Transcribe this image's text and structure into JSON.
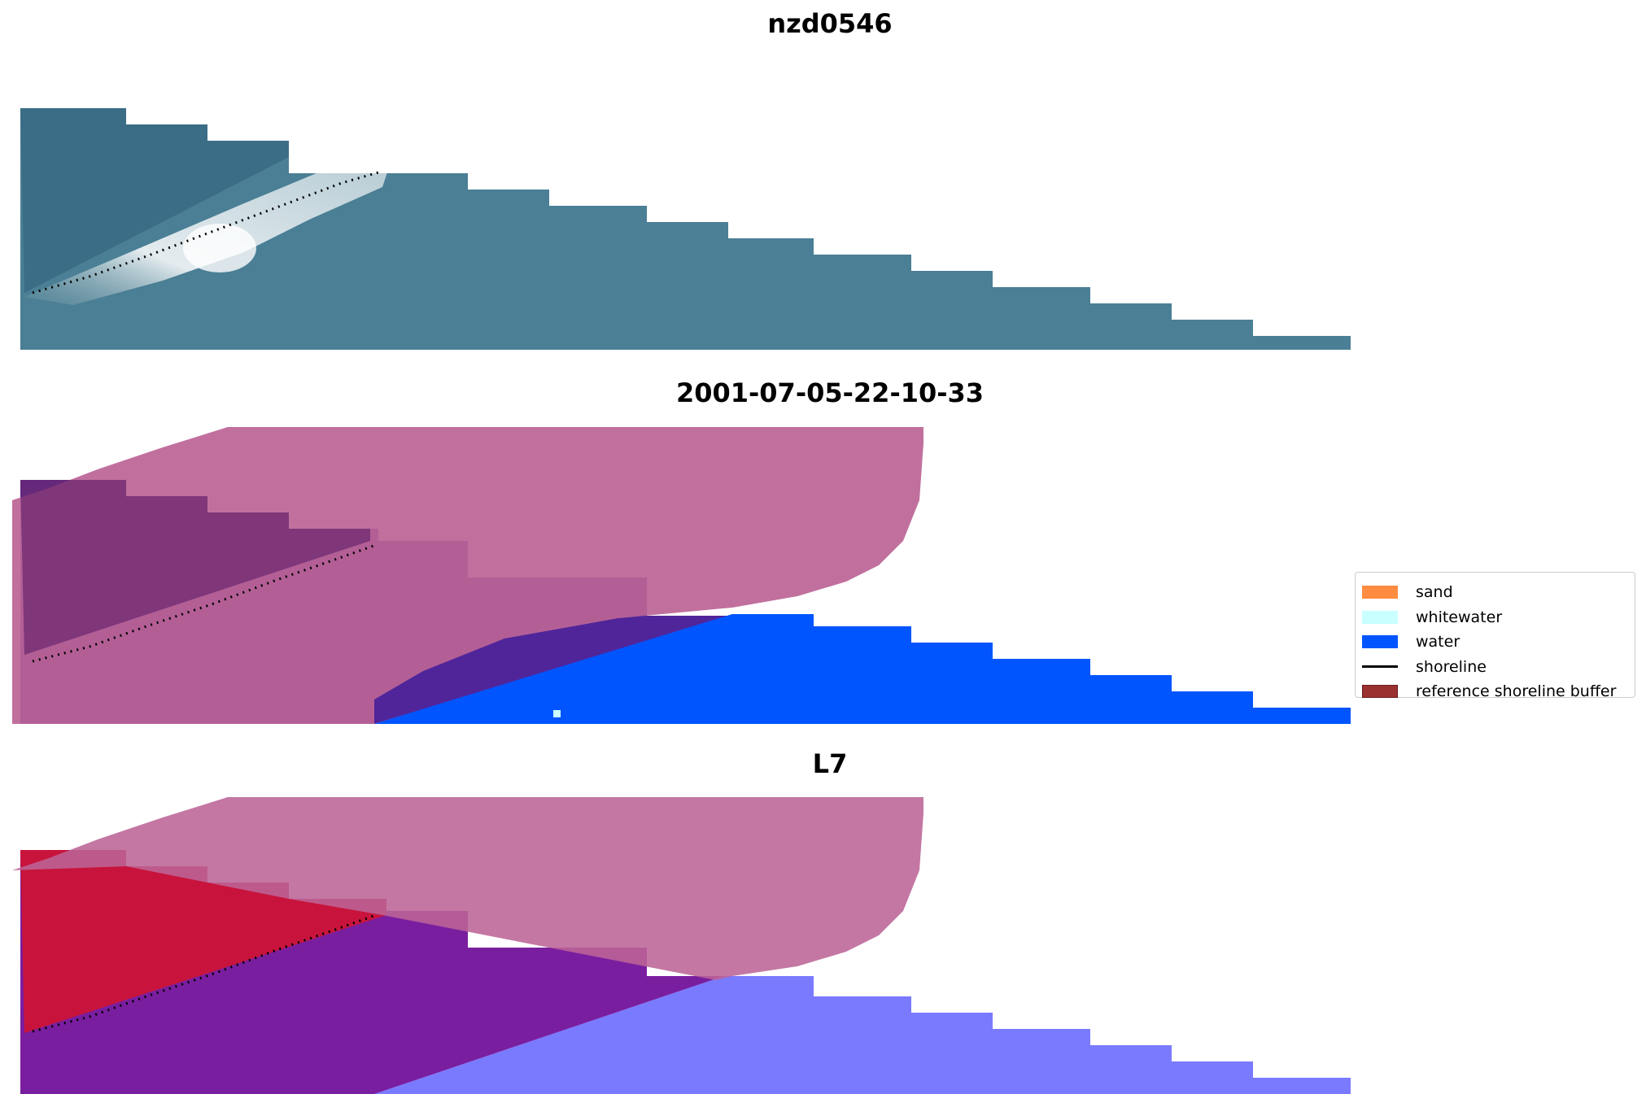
{
  "panels": [
    {
      "title": "nzd0546"
    },
    {
      "title": "2001-07-05-22-10-33"
    },
    {
      "title": "L7"
    }
  ],
  "legend": {
    "items": [
      {
        "label": "sand",
        "color": "#ff8c40",
        "kind": "patch"
      },
      {
        "label": "whitewater",
        "color": "#c9ffff",
        "kind": "patch"
      },
      {
        "label": "water",
        "color": "#0055ff",
        "kind": "patch"
      },
      {
        "label": "shoreline",
        "color": "#000000",
        "kind": "line"
      },
      {
        "label": "reference shoreline buffer",
        "color": "#9b3030",
        "kind": "patch"
      }
    ]
  },
  "colors": {
    "rgb_water": "#4a7f95",
    "rgb_whitewater": "#e8f0f0",
    "buffer_overlay": "#bc6496",
    "classified_water": "#0055ff",
    "classified_other": "#50259a",
    "mndwi_red": "#c8143c",
    "mndwi_purple": "#7a1ea0",
    "mndwi_blue": "#7a7aff"
  }
}
